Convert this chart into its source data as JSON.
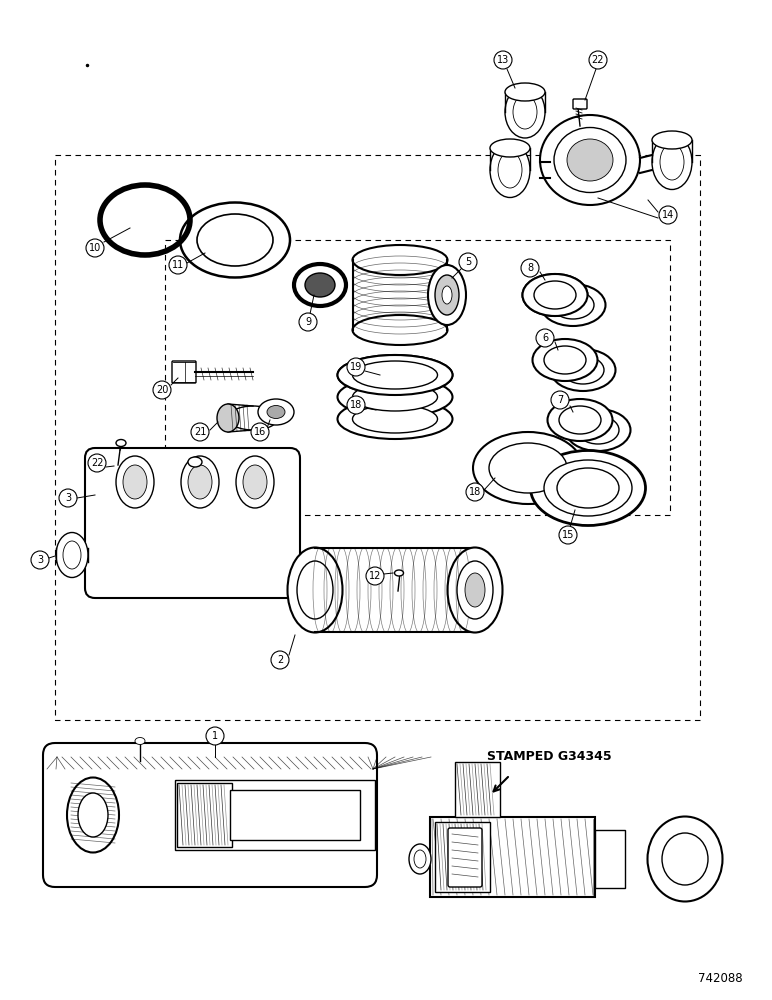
{
  "background_color": "#ffffff",
  "figure_width": 7.72,
  "figure_height": 10.0,
  "dpi": 100,
  "catalog_number": "742088",
  "stamped_text": "STAMPED G34345",
  "line_color": "#000000",
  "lw_thin": 0.6,
  "lw_med": 1.0,
  "lw_thick": 1.5,
  "lw_vthick": 2.0
}
